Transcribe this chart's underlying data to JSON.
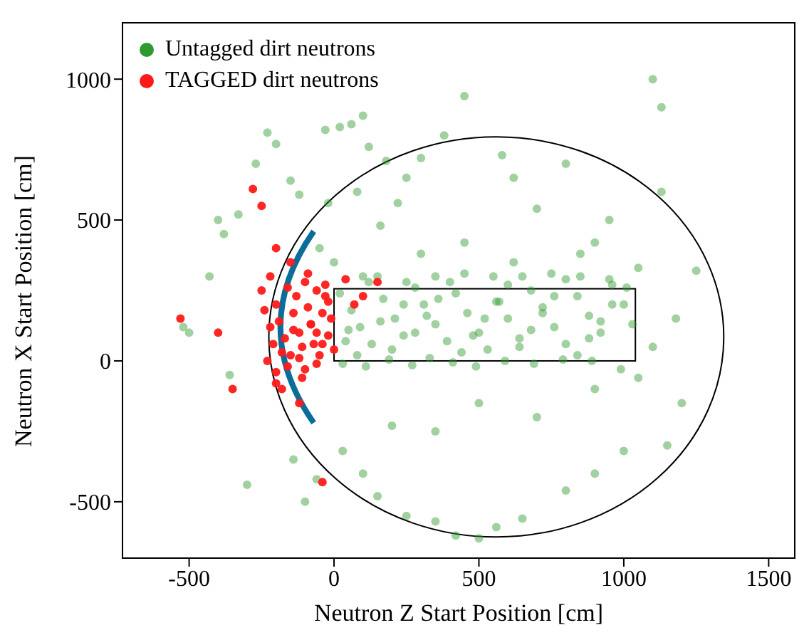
{
  "chart_data": {
    "type": "scatter",
    "xlabel": "Neutron Z Start Position [cm]",
    "ylabel": "Neutron X Start Position [cm]",
    "xlim": [
      -730,
      1590
    ],
    "ylim": [
      -700,
      1200
    ],
    "xticks": [
      -500,
      0,
      500,
      1000,
      1500
    ],
    "yticks": [
      -500,
      0,
      500,
      1000
    ],
    "legend": "top left",
    "marker": "circle",
    "grid": false,
    "series": [
      {
        "name": "Untagged dirt neutrons",
        "color": "#2e9a2e",
        "x": [
          -520,
          -500,
          -430,
          -400,
          -380,
          -360,
          -300,
          -330,
          -270,
          -230,
          -200,
          -150,
          -120,
          -140,
          -100,
          -60,
          -30,
          20,
          60,
          100,
          120,
          180,
          220,
          160,
          80,
          -20,
          250,
          300,
          380,
          450,
          580,
          620,
          700,
          800,
          850,
          900,
          950,
          1050,
          1100,
          1130,
          1180,
          1250,
          1130,
          1200,
          1150,
          1000,
          900,
          800,
          650,
          560,
          500,
          420,
          350,
          250,
          150,
          100,
          30,
          200,
          350,
          500,
          700,
          900,
          1050,
          1100,
          -50,
          0,
          100,
          20,
          60,
          90,
          130,
          170,
          210,
          240,
          280,
          310,
          350,
          390,
          420,
          460,
          500,
          530,
          570,
          600,
          640,
          680,
          720,
          760,
          800,
          840,
          880,
          920,
          960,
          1000,
          1030,
          40,
          80,
          120,
          160,
          200,
          240,
          280,
          320,
          360,
          400,
          440,
          480,
          520,
          560,
          600,
          640,
          680,
          720,
          760,
          800,
          840,
          880,
          920,
          960,
          1010,
          50,
          150,
          250,
          350,
          450,
          550,
          650,
          750,
          850,
          950,
          30,
          110,
          190,
          270,
          330,
          410,
          490,
          590,
          690,
          790,
          890,
          990,
          450,
          300,
          620
        ],
        "values": [
          120,
          100,
          300,
          500,
          450,
          -50,
          -440,
          520,
          700,
          810,
          770,
          640,
          590,
          -350,
          -500,
          -420,
          820,
          830,
          840,
          870,
          760,
          710,
          560,
          480,
          600,
          560,
          650,
          720,
          800,
          940,
          730,
          650,
          540,
          700,
          380,
          420,
          500,
          330,
          1000,
          900,
          150,
          320,
          600,
          -150,
          -300,
          -320,
          -400,
          -460,
          -560,
          -590,
          -630,
          -620,
          -570,
          -550,
          -480,
          -400,
          -320,
          -230,
          -250,
          -150,
          -200,
          -100,
          -60,
          50,
          400,
          350,
          300,
          240,
          180,
          120,
          60,
          220,
          150,
          90,
          260,
          200,
          130,
          70,
          240,
          170,
          100,
          40,
          210,
          150,
          80,
          250,
          190,
          120,
          60,
          230,
          160,
          100,
          270,
          200,
          130,
          70,
          20,
          280,
          140,
          40,
          200,
          100,
          160,
          220,
          280,
          30,
          90,
          150,
          210,
          270,
          50,
          110,
          170,
          230,
          290,
          20,
          80,
          140,
          200,
          260,
          110,
          300,
          280,
          300,
          310,
          300,
          300,
          310,
          300,
          290,
          -10,
          -20,
          5,
          -15,
          10,
          -5,
          -20,
          0,
          -10,
          5,
          0,
          -30,
          420,
          380,
          350
        ]
      },
      {
        "name": "TAGGED dirt neutrons",
        "color": "#ff1a1a",
        "x": [
          -530,
          -400,
          -350,
          -280,
          -250,
          -200,
          -40,
          40,
          100,
          150,
          70,
          -120,
          -180,
          -230,
          -250,
          -240,
          -220,
          -210,
          -200,
          -190,
          -170,
          -160,
          -150,
          -140,
          -130,
          -120,
          -110,
          -100,
          -90,
          -80,
          -70,
          -60,
          -50,
          -40,
          -30,
          -20,
          -10,
          0,
          -220,
          -200,
          -180,
          -160,
          -140,
          -120,
          -100,
          -80,
          -60,
          -40,
          -20,
          -150,
          -90,
          -30,
          -200,
          -110,
          -60
        ],
        "values": [
          150,
          100,
          -100,
          610,
          550,
          400,
          -430,
          290,
          230,
          280,
          200,
          -150,
          -100,
          0,
          250,
          180,
          120,
          60,
          200,
          140,
          80,
          260,
          20,
          170,
          230,
          100,
          50,
          280,
          190,
          130,
          60,
          250,
          20,
          170,
          230,
          90,
          150,
          40,
          300,
          -40,
          30,
          -20,
          110,
          10,
          -30,
          130,
          -10,
          60,
          210,
          350,
          310,
          270,
          -80,
          -60,
          100
        ]
      }
    ]
  }
}
